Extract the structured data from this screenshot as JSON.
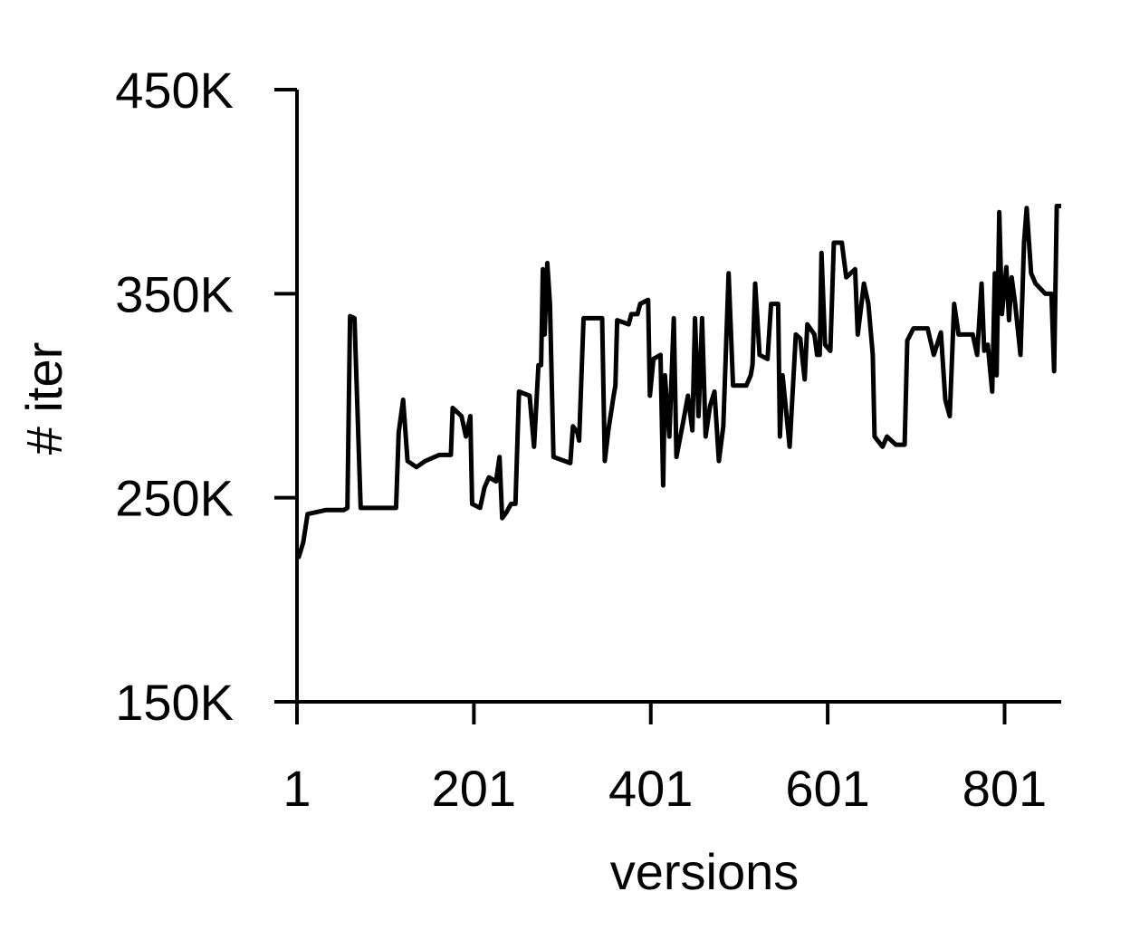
{
  "chart_data": {
    "type": "line",
    "xlabel": "versions",
    "ylabel": "# iter",
    "x": [
      1,
      3,
      8,
      13,
      34,
      54,
      58,
      61,
      66,
      73,
      113,
      116,
      121,
      126,
      136,
      146,
      162,
      175,
      177,
      187,
      192,
      197,
      199,
      208,
      213,
      218,
      226,
      230,
      233,
      238,
      243,
      248,
      252,
      264,
      269,
      274,
      277,
      279,
      281,
      284,
      287,
      291,
      310,
      313,
      318,
      320,
      325,
      346,
      349,
      353,
      359,
      361,
      363,
      376,
      379,
      386,
      389,
      398,
      400,
      404,
      412,
      415,
      417,
      422,
      427,
      430,
      438,
      443,
      448,
      451,
      455,
      459,
      463,
      468,
      473,
      478,
      483,
      489,
      494,
      509,
      514,
      516,
      519,
      524,
      533,
      537,
      545,
      547,
      550,
      558,
      565,
      570,
      575,
      578,
      586,
      589,
      592,
      594,
      598,
      604,
      608,
      617,
      622,
      632,
      635,
      642,
      647,
      652,
      654,
      663,
      668,
      678,
      688,
      691,
      698,
      714,
      721,
      729,
      734,
      739,
      744,
      749,
      765,
      770,
      775,
      778,
      782,
      787,
      790,
      792,
      795,
      798,
      803,
      806,
      809,
      813,
      819,
      823,
      826,
      831,
      836,
      847,
      854,
      857,
      860,
      865
    ],
    "values": [
      221000,
      221000,
      228000,
      242000,
      244000,
      244000,
      245000,
      339000,
      338000,
      245000,
      245000,
      282000,
      298000,
      268000,
      265000,
      268000,
      271000,
      271000,
      294000,
      290000,
      280000,
      290000,
      247000,
      245000,
      255000,
      260000,
      258000,
      270000,
      240000,
      243000,
      247000,
      247000,
      302000,
      300000,
      275000,
      315000,
      315000,
      362000,
      330000,
      365000,
      345000,
      270000,
      267000,
      285000,
      282000,
      278000,
      338000,
      338000,
      268000,
      283000,
      300000,
      305000,
      337000,
      335000,
      340000,
      340000,
      345000,
      347000,
      300000,
      318000,
      320000,
      256000,
      310000,
      280000,
      338000,
      270000,
      288000,
      300000,
      283000,
      338000,
      290000,
      338000,
      280000,
      295000,
      302000,
      268000,
      285000,
      360000,
      305000,
      305000,
      310000,
      315000,
      355000,
      320000,
      318000,
      345000,
      345000,
      280000,
      310000,
      275000,
      330000,
      328000,
      308000,
      335000,
      330000,
      320000,
      320000,
      370000,
      325000,
      322000,
      375000,
      375000,
      358000,
      362000,
      330000,
      355000,
      345000,
      320000,
      280000,
      275000,
      280000,
      276000,
      276000,
      327000,
      333000,
      333000,
      320000,
      331000,
      298000,
      290000,
      345000,
      330000,
      330000,
      320000,
      355000,
      322000,
      325000,
      302000,
      360000,
      310000,
      390000,
      340000,
      363000,
      337000,
      358000,
      345000,
      320000,
      375000,
      392000,
      360000,
      355000,
      350000,
      350000,
      312000,
      393000,
      393000
    ],
    "color": "#000000",
    "xlim": [
      1,
      865
    ],
    "xticks": [
      1,
      201,
      401,
      601,
      801
    ],
    "ylim": [
      150000,
      450000
    ],
    "yticks": [
      {
        "value": 150000,
        "label": "150K"
      },
      {
        "value": 250000,
        "label": "250K"
      },
      {
        "value": 350000,
        "label": "350K"
      },
      {
        "value": 450000,
        "label": "450K"
      }
    ]
  }
}
